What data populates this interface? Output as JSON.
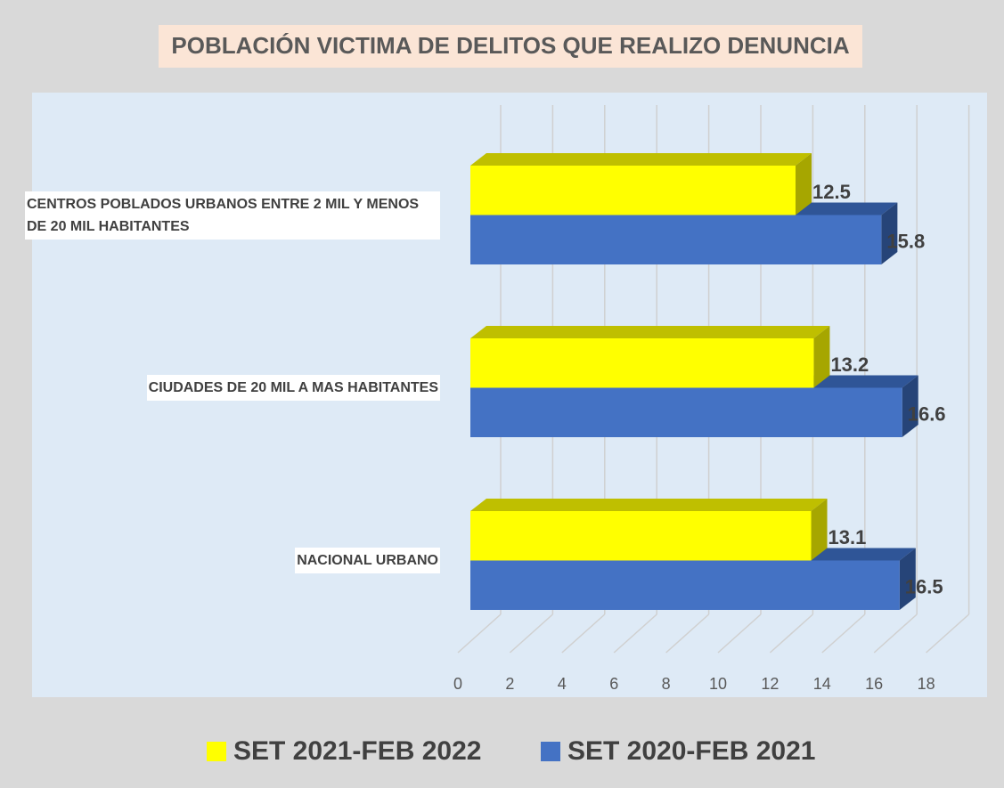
{
  "chart_data": {
    "type": "bar3d-horizontal",
    "title": "POBLACIÓN VICTIMA DE DELITOS QUE REALIZO DENUNCIA",
    "categories": [
      "CENTROS POBLADOS URBANOS ENTRE 2 MIL Y MENOS DE 20 MIL HABITANTES",
      "CIUDADES DE 20 MIL A MAS HABITANTES",
      "NACIONAL URBANO"
    ],
    "series": [
      {
        "name": "SET 2021-FEB 2022",
        "color": "#ffff00",
        "values": [
          12.5,
          13.2,
          13.1
        ]
      },
      {
        "name": "SET 2020-FEB 2021",
        "color": "#4472c4",
        "values": [
          15.8,
          16.6,
          16.5
        ]
      }
    ],
    "xlim": [
      0,
      18
    ],
    "xticks": [
      0,
      2,
      4,
      6,
      8,
      10,
      12,
      14,
      16,
      18
    ],
    "grid": true,
    "legend": "bottom"
  }
}
